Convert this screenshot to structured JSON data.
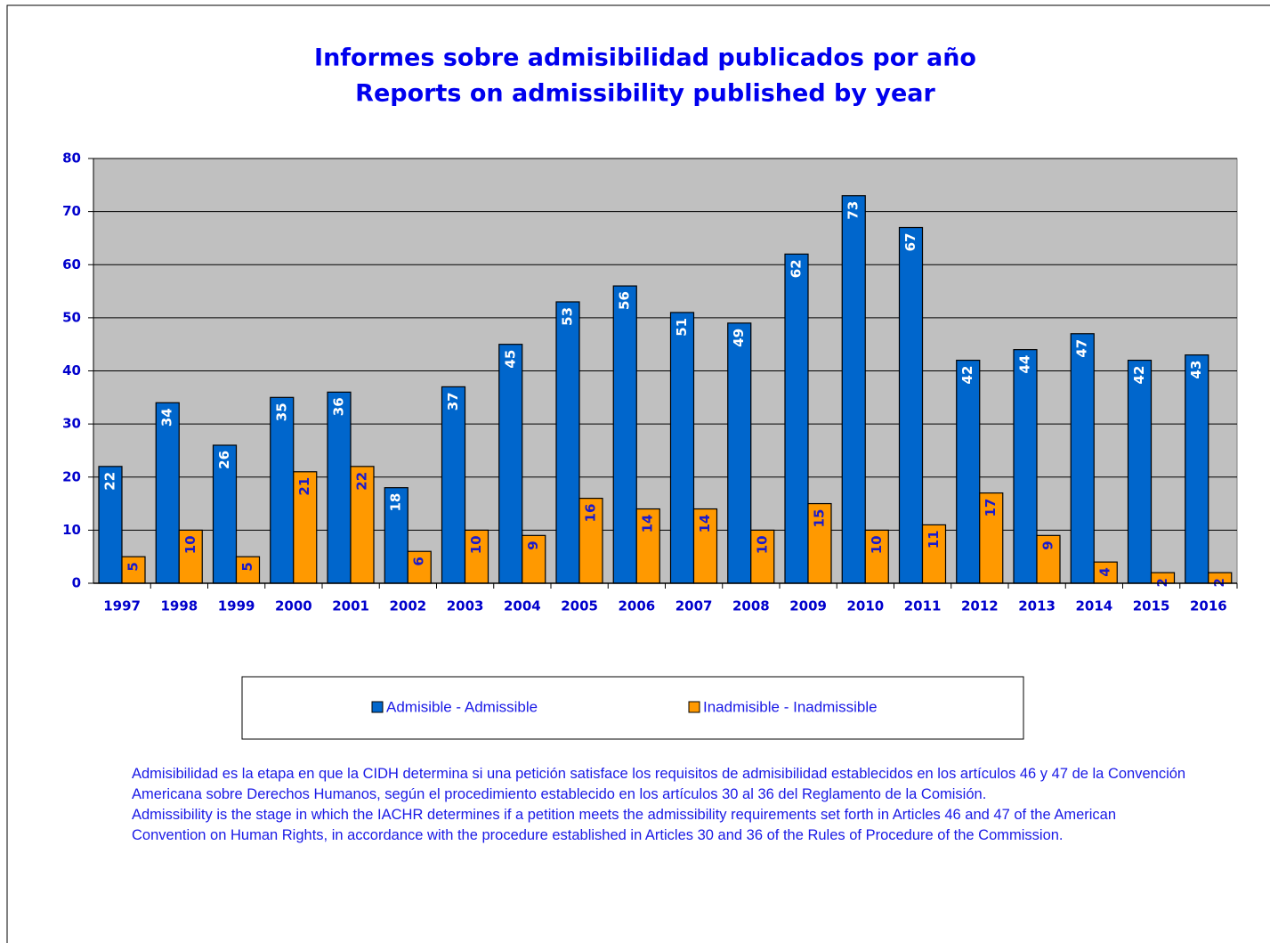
{
  "chart_data": {
    "type": "bar",
    "title": [
      "Informes sobre admisibilidad publicados por año",
      "Reports on admissibility published by year"
    ],
    "categories": [
      "1997",
      "1998",
      "1999",
      "2000",
      "2001",
      "2002",
      "2003",
      "2004",
      "2005",
      "2006",
      "2007",
      "2008",
      "2009",
      "2010",
      "2011",
      "2012",
      "2013",
      "2014",
      "2015",
      "2016"
    ],
    "series": [
      {
        "name": "Admisible - Admissible",
        "color": "#0066cc",
        "values": [
          22,
          34,
          26,
          35,
          36,
          18,
          37,
          45,
          53,
          56,
          51,
          49,
          62,
          73,
          67,
          42,
          44,
          47,
          42,
          43
        ]
      },
      {
        "name": "Inadmisible - Inadmissible",
        "color": "#ff9900",
        "values": [
          5,
          10,
          5,
          21,
          22,
          6,
          10,
          9,
          16,
          14,
          14,
          10,
          15,
          10,
          11,
          17,
          9,
          4,
          2,
          2
        ]
      }
    ],
    "ylim": [
      0,
      80
    ],
    "yticks": [
      0,
      10,
      20,
      30,
      40,
      50,
      60,
      70,
      80
    ],
    "grid": true,
    "note": [
      "Admisibilidad es la etapa en que la CIDH determina si una petición satisface los requisitos de admisibilidad establecidos en los artículos 46 y 47 de la Convención Americana sobre Derechos Humanos, según el procedimiento establecido en los artículos 30 al 36 del Reglamento de la Comisión.",
      "Admissibility is the stage in which the IACHR determines if a petition meets the admissibility requirements set forth in Articles 46 and 47 of the American Convention on Human Rights, in accordance with the procedure established in Articles 30 and 36 of the Rules of Procedure of the Commission."
    ]
  }
}
